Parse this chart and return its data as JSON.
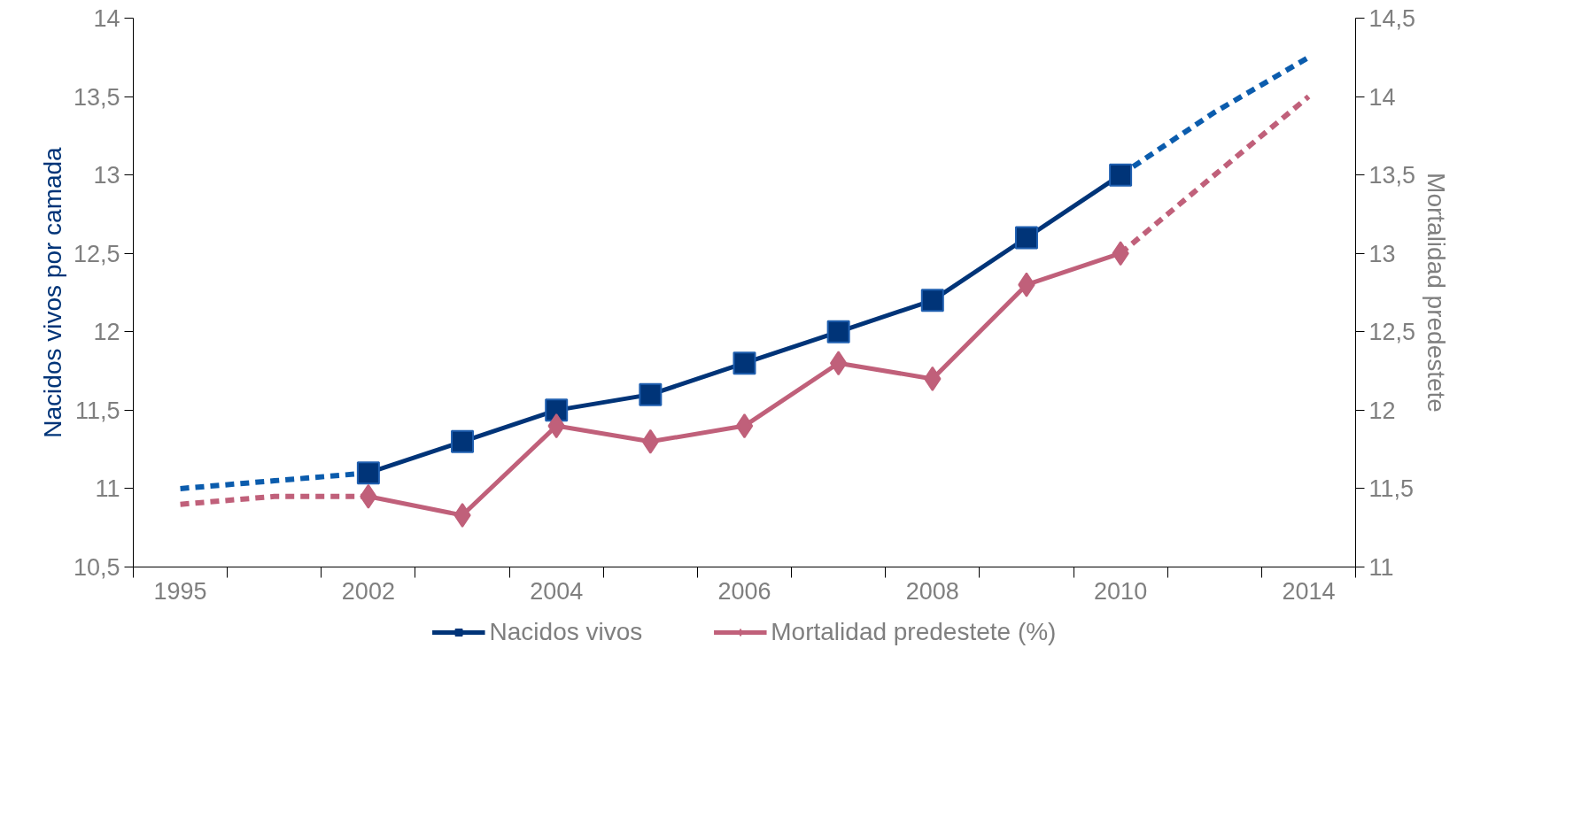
{
  "chart_data": {
    "type": "line",
    "ylabel": "Nacidos vivos por camada",
    "y2label": "Mortalidad predestete",
    "categories": [
      "1995",
      null,
      "2002",
      null,
      "2004",
      null,
      "2006",
      null,
      "2008",
      null,
      "2010",
      null,
      "2014"
    ],
    "ylim": [
      10.5,
      14
    ],
    "yticks": [
      {
        "value": 10.5,
        "label": "10,5"
      },
      11,
      {
        "value": 11.5,
        "label": "11,5"
      },
      12,
      {
        "value": 12.5,
        "label": "12,5"
      },
      13,
      {
        "value": 13.5,
        "label": "13,5"
      },
      14
    ],
    "y2lim": [
      11,
      14.5
    ],
    "y2ticks": [
      11,
      {
        "value": 11.5,
        "label": "11,5"
      },
      12,
      {
        "value": 12.5,
        "label": "12,5"
      },
      13,
      {
        "value": 13.5,
        "label": "13,5"
      },
      14,
      {
        "value": 14.5,
        "label": "14,5"
      }
    ],
    "series": [
      {
        "color": "#0b5cad",
        "line_style": "dashed",
        "marker": "none",
        "values": [
          11.0,
          11.05,
          11.1,
          null,
          null,
          null,
          null,
          null,
          null,
          null,
          13.0,
          13.4,
          13.75
        ]
      },
      {
        "color": "#c0607a",
        "line_style": "dashed",
        "marker": "none",
        "axis": "y2",
        "values": [
          11.4,
          11.45,
          11.45,
          null,
          null,
          null,
          null,
          null,
          null,
          null,
          13.0,
          13.5,
          14.0
        ]
      },
      {
        "name": "Nacidos vivos",
        "color": "#003478",
        "line_style": "solid",
        "marker": "square",
        "values": [
          null,
          null,
          11.1,
          11.3,
          11.5,
          11.6,
          11.8,
          12.0,
          12.2,
          12.6,
          13.0,
          null,
          null
        ]
      },
      {
        "name": "Mortalidad predestete (%)",
        "color": "#c0607a",
        "line_style": "solid",
        "marker": "diamond",
        "axis": "y2",
        "values": [
          null,
          null,
          11.45,
          11.33,
          11.9,
          11.8,
          11.9,
          12.3,
          12.2,
          12.8,
          13.0,
          null,
          null
        ]
      }
    ],
    "grid": false,
    "legend": "bottom"
  }
}
